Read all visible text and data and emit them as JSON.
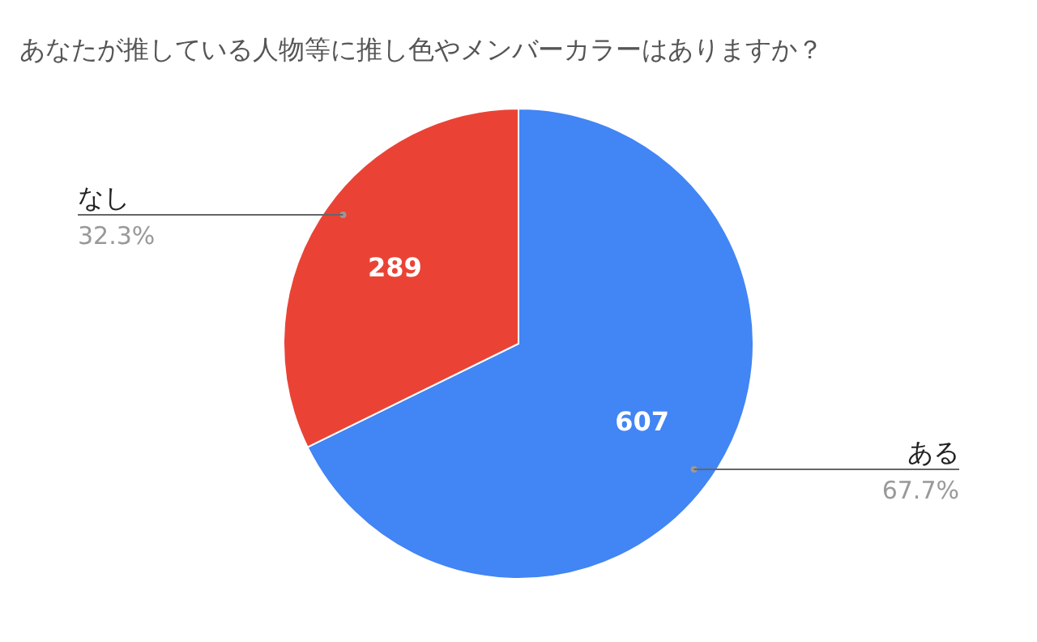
{
  "chart_data": {
    "type": "pie",
    "title": "あなたが推している人物等に推し色やメンバーカラーはありますか？",
    "categories": [
      "ある",
      "なし"
    ],
    "values": [
      607,
      289
    ],
    "colors": [
      "#4285f4",
      "#ea4335"
    ],
    "value_labels": [
      "607",
      "289"
    ],
    "annotations": [
      "67.7%",
      "32.3%"
    ]
  }
}
